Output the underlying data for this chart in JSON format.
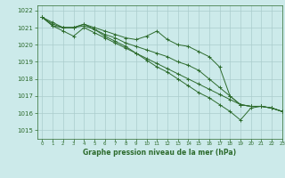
{
  "background_color": "#cceaea",
  "grid_color": "#aacccc",
  "line_color": "#2d6b2d",
  "title": "Graphe pression niveau de la mer (hPa)",
  "xlim": [
    -0.5,
    23
  ],
  "ylim": [
    1014.5,
    1022.3
  ],
  "yticks": [
    1015,
    1016,
    1017,
    1018,
    1019,
    1020,
    1021,
    1022
  ],
  "xticks": [
    0,
    1,
    2,
    3,
    4,
    5,
    6,
    7,
    8,
    9,
    10,
    11,
    12,
    13,
    14,
    15,
    16,
    17,
    18,
    19,
    20,
    21,
    22,
    23
  ],
  "series": [
    {
      "x": [
        0,
        1,
        2,
        3,
        4,
        5,
        6,
        7,
        8,
        9,
        10,
        11,
        12,
        13,
        14,
        15,
        16,
        17,
        18,
        19,
        20,
        21,
        22,
        23
      ],
      "y": [
        1021.6,
        1021.3,
        1021.0,
        1021.0,
        1021.2,
        1021.0,
        1020.8,
        1020.6,
        1020.4,
        1020.3,
        1020.5,
        1020.8,
        1020.3,
        1020.0,
        1019.9,
        1019.6,
        1019.3,
        1018.7,
        1017.0,
        1016.5,
        1016.4,
        1016.4,
        1016.3,
        1016.1
      ]
    },
    {
      "x": [
        0,
        1,
        2,
        3,
        4,
        5,
        6,
        7,
        8,
        9,
        10,
        11,
        12,
        13,
        14,
        15,
        16,
        17,
        18,
        19,
        20,
        21,
        22,
        23
      ],
      "y": [
        1021.6,
        1021.2,
        1021.0,
        1021.0,
        1021.1,
        1020.9,
        1020.6,
        1020.4,
        1020.1,
        1019.9,
        1019.7,
        1019.5,
        1019.3,
        1019.0,
        1018.8,
        1018.5,
        1018.0,
        1017.5,
        1017.0,
        1016.5,
        1016.4,
        1016.4,
        1016.3,
        1016.1
      ]
    },
    {
      "x": [
        0,
        1,
        2,
        3,
        4,
        5,
        6,
        7,
        8,
        9,
        10,
        11,
        12,
        13,
        14,
        15,
        16,
        17,
        18,
        19,
        20,
        21,
        22,
        23
      ],
      "y": [
        1021.6,
        1021.1,
        1020.8,
        1020.5,
        1021.0,
        1020.7,
        1020.4,
        1020.1,
        1019.8,
        1019.5,
        1019.2,
        1018.9,
        1018.6,
        1018.3,
        1018.0,
        1017.7,
        1017.4,
        1017.1,
        1016.8,
        1016.5,
        1016.4,
        1016.4,
        1016.3,
        1016.1
      ]
    },
    {
      "x": [
        0,
        1,
        2,
        3,
        4,
        5,
        6,
        7,
        8,
        9,
        10,
        11,
        12,
        13,
        14,
        15,
        16,
        17,
        18,
        19,
        20,
        21,
        22,
        23
      ],
      "y": [
        1021.6,
        1021.1,
        1021.0,
        1021.0,
        1021.2,
        1020.9,
        1020.5,
        1020.2,
        1019.9,
        1019.5,
        1019.1,
        1018.7,
        1018.4,
        1018.0,
        1017.6,
        1017.2,
        1016.9,
        1016.5,
        1016.1,
        1015.6,
        1016.3,
        1016.4,
        1016.3,
        1016.1
      ]
    }
  ]
}
